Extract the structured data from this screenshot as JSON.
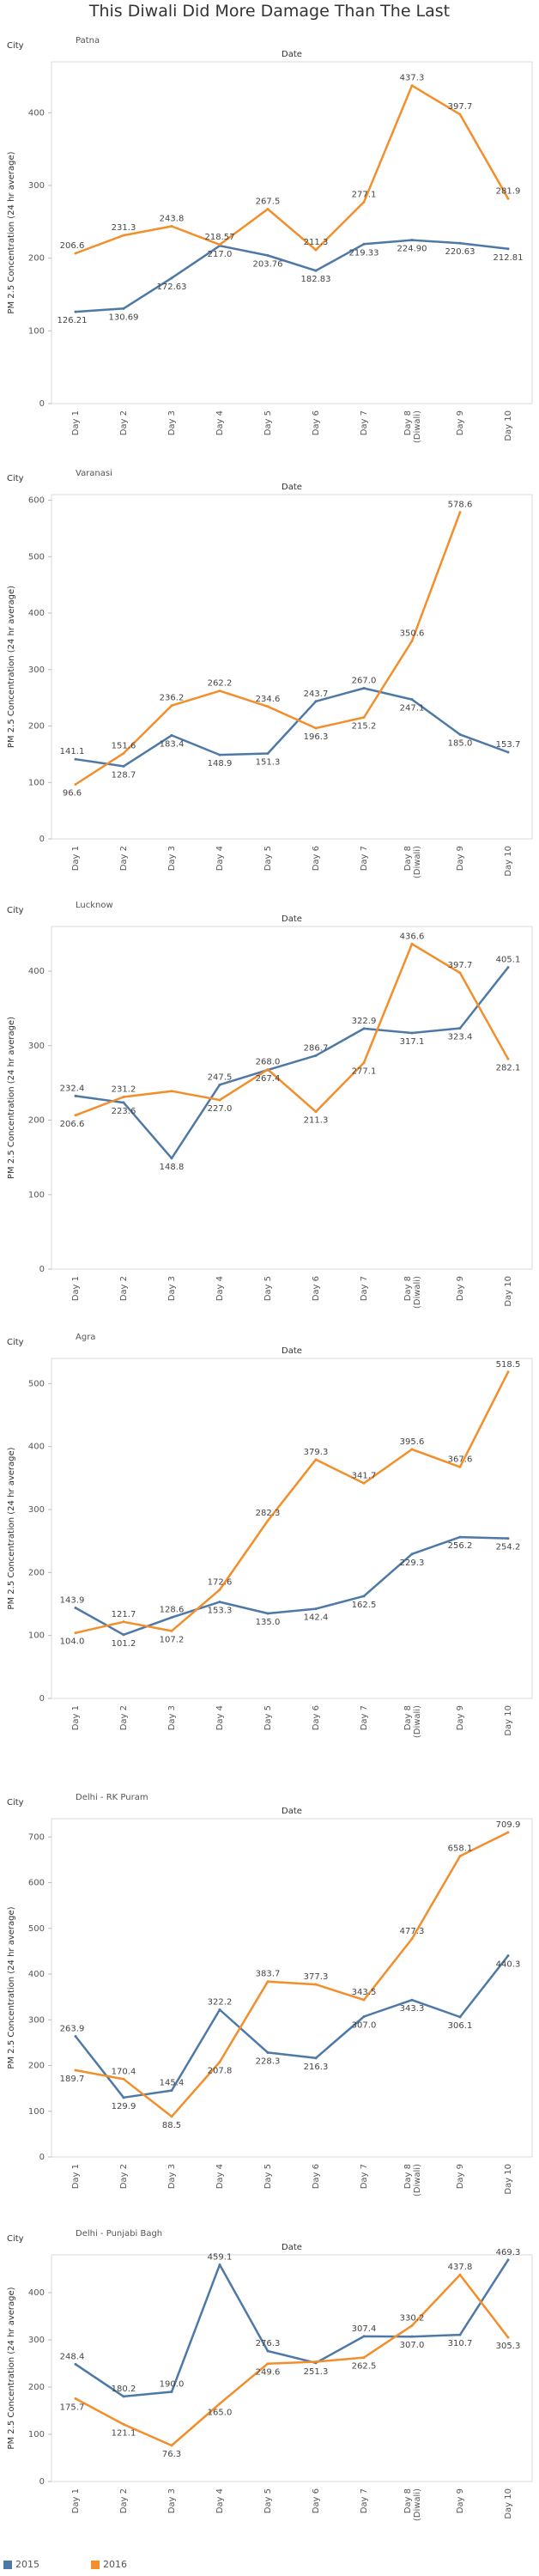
{
  "title": "This Diwali Did More Damage Than The Last",
  "colors": {
    "s2015": "#4e79a7",
    "s2016": "#f28e2b"
  },
  "chart_data": [
    {
      "type": "line",
      "city_header": "City",
      "city": "Patna",
      "column_header": "Date",
      "ylabel": "PM 2.5 Concentration (24 hr average)",
      "categories": [
        "Day 1",
        "Day 2",
        "Day 3",
        "Day 4",
        "Day 5",
        "Day 6",
        "Day 7",
        "Day 8 (Diwali)",
        "Day 9",
        "Day 10"
      ],
      "ylim": [
        0,
        470
      ],
      "yticks": [
        0,
        100,
        200,
        300,
        400
      ],
      "series": [
        {
          "name": "2015",
          "values": [
            126.21,
            130.69,
            172.63,
            217.0,
            203.76,
            182.83,
            219.33,
            224.9,
            220.63,
            212.81
          ],
          "labels": [
            "126.21",
            "130.69",
            "172.63",
            "217.0",
            "203.76",
            "182.83",
            "219.33",
            "224.90",
            "220.63",
            "212.81"
          ]
        },
        {
          "name": "2016",
          "values": [
            206.6,
            231.3,
            243.8,
            218.57,
            267.5,
            211.3,
            277.1,
            437.3,
            397.7,
            281.9
          ],
          "labels": [
            "206.6",
            "231.3",
            "243.8",
            "218.57",
            "267.5",
            "211.3",
            "277.1",
            "437.3",
            "397.7",
            "281.9"
          ]
        }
      ]
    },
    {
      "type": "line",
      "city_header": "City",
      "city": "Varanasi",
      "column_header": "Date",
      "ylabel": "PM 2.5 Concentration (24 hr average)",
      "categories": [
        "Day 1",
        "Day 2",
        "Day 3",
        "Day 4",
        "Day 5",
        "Day 6",
        "Day 7",
        "Day 8 (Diwali)",
        "Day 9",
        "Day 10"
      ],
      "ylim": [
        0,
        610
      ],
      "yticks": [
        0,
        100,
        200,
        300,
        400,
        500,
        600
      ],
      "series": [
        {
          "name": "2015",
          "values": [
            141.1,
            128.7,
            183.4,
            148.9,
            151.3,
            243.7,
            267.0,
            247.1,
            185.0,
            153.7
          ],
          "labels": [
            "141.1",
            "128.7",
            "183.4",
            "148.9",
            "151.3",
            "243.7",
            "267.0",
            "247.1",
            "185.0",
            "153.7"
          ]
        },
        {
          "name": "2016",
          "values": [
            96.6,
            151.6,
            236.2,
            262.2,
            234.6,
            196.3,
            215.2,
            350.6,
            578.6,
            null
          ],
          "labels": [
            "96.6",
            "151.6",
            "236.2",
            "262.2",
            "234.6",
            "196.3",
            "215.2",
            "350.6",
            "578.6",
            ""
          ]
        }
      ]
    },
    {
      "type": "line",
      "city_header": "City",
      "city": "Lucknow",
      "column_header": "Date",
      "ylabel": "PM 2.5 Concentration (24 hr average)",
      "categories": [
        "Day 1",
        "Day 2",
        "Day 3",
        "Day 4",
        "Day 5",
        "Day 6",
        "Day 7",
        "Day 8 (Diwali)",
        "Day 9",
        "Day 10"
      ],
      "ylim": [
        0,
        460
      ],
      "yticks": [
        0,
        100,
        200,
        300,
        400
      ],
      "series": [
        {
          "name": "2015",
          "values": [
            232.4,
            223.6,
            148.8,
            247.5,
            267.4,
            286.7,
            322.9,
            317.1,
            323.4,
            405.1
          ],
          "labels": [
            "232.4",
            "223.6",
            "148.8",
            "247.5",
            "267.4",
            "286.7",
            "322.9",
            "317.1",
            "323.4",
            "405.1"
          ]
        },
        {
          "name": "2016",
          "values": [
            206.6,
            231.2,
            239.0,
            227.0,
            268.0,
            211.3,
            277.1,
            436.6,
            397.7,
            282.1
          ],
          "labels": [
            "206.6",
            "231.2",
            "",
            "227.0",
            "268.0",
            "211.3",
            "277.1",
            "436.6",
            "397.7",
            "282.1"
          ]
        }
      ]
    },
    {
      "type": "line",
      "city_header": "City",
      "city": "Agra",
      "column_header": "Date",
      "ylabel": "PM 2.5 Concentration (24 hr average)",
      "categories": [
        "Day 1",
        "Day 2",
        "Day 3",
        "Day 4",
        "Day 5",
        "Day 6",
        "Day 7",
        "Day 8 (Diwali)",
        "Day 9",
        "Day 10"
      ],
      "ylim": [
        0,
        540
      ],
      "yticks": [
        0,
        100,
        200,
        300,
        400,
        500
      ],
      "series": [
        {
          "name": "2015",
          "values": [
            143.9,
            101.2,
            128.6,
            153.3,
            135.0,
            142.4,
            162.5,
            229.3,
            256.2,
            254.2
          ],
          "labels": [
            "143.9",
            "101.2",
            "128.6",
            "153.3",
            "135.0",
            "142.4",
            "162.5",
            "229.3",
            "256.2",
            "254.2"
          ]
        },
        {
          "name": "2016",
          "values": [
            104.0,
            121.7,
            107.2,
            172.6,
            282.3,
            379.3,
            341.7,
            395.6,
            367.6,
            518.5
          ],
          "labels": [
            "104.0",
            "121.7",
            "107.2",
            "172.6",
            "282.3",
            "379.3",
            "341.7",
            "395.6",
            "367.6",
            "518.5"
          ]
        }
      ]
    },
    {
      "type": "line",
      "city_header": "City",
      "city": "Delhi - RK Puram",
      "column_header": "Date",
      "ylabel": "PM 2.5 Concentration (24 hr average)",
      "categories": [
        "Day 1",
        "Day 2",
        "Day 3",
        "Day 4",
        "Day 5",
        "Day 6",
        "Day 7",
        "Day 8 (Diwali)",
        "Day 9",
        "Day 10"
      ],
      "ylim": [
        0,
        740
      ],
      "yticks": [
        0,
        100,
        200,
        300,
        400,
        500,
        600,
        700
      ],
      "series": [
        {
          "name": "2015",
          "values": [
            263.9,
            129.9,
            145.4,
            322.2,
            228.3,
            216.3,
            307.0,
            343.3,
            306.1,
            440.3
          ],
          "labels": [
            "263.9",
            "129.9",
            "145.4",
            "322.2",
            "228.3",
            "216.3",
            "307.0",
            "343.3",
            "306.1",
            "440.3"
          ]
        },
        {
          "name": "2016",
          "values": [
            189.7,
            170.4,
            88.5,
            207.8,
            383.7,
            377.3,
            343.5,
            477.3,
            658.1,
            709.9
          ],
          "labels": [
            "189.7",
            "170.4",
            "88.5",
            "207.8",
            "383.7",
            "377.3",
            "343.5",
            "477.3",
            "658.1",
            "709.9"
          ]
        }
      ]
    },
    {
      "type": "line",
      "city_header": "City",
      "city": "Delhi - Punjabi Bagh",
      "column_header": "Date",
      "ylabel": "PM 2.5 Concentration (24 hr average)",
      "categories": [
        "Day 1",
        "Day 2",
        "Day 3",
        "Day 4",
        "Day 5",
        "Day 6",
        "Day 7",
        "Day 8 (Diwali)",
        "Day 9",
        "Day 10"
      ],
      "ylim": [
        0,
        480
      ],
      "yticks": [
        0,
        100,
        200,
        300,
        400
      ],
      "series": [
        {
          "name": "2015",
          "values": [
            248.4,
            180.2,
            190.0,
            459.1,
            276.3,
            251.3,
            307.4,
            307.0,
            310.7,
            469.3
          ],
          "labels": [
            "248.4",
            "180.2",
            "190.0",
            "459.1",
            "276.3",
            "251.3",
            "307.4",
            "307.0",
            "310.7",
            "469.3"
          ]
        },
        {
          "name": "2016",
          "values": [
            175.7,
            121.1,
            76.3,
            165.0,
            249.6,
            253.7,
            262.5,
            330.2,
            437.8,
            305.3
          ],
          "labels": [
            "175.7",
            "121.1",
            "76.3",
            "165.0",
            "249.6",
            "",
            "262.5",
            "330.2",
            "437.8",
            "305.3"
          ]
        }
      ]
    }
  ],
  "legend": [
    {
      "label": "2015"
    },
    {
      "label": "2016"
    }
  ]
}
